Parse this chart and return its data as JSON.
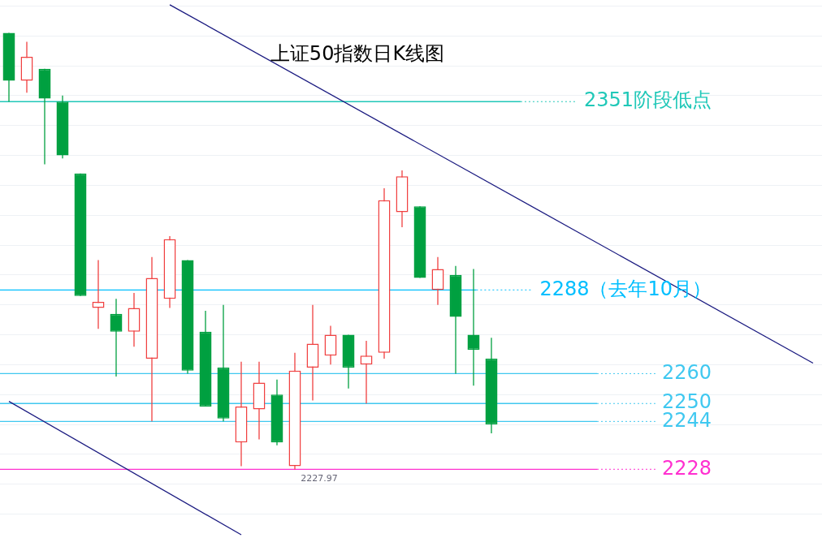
{
  "chart_data": {
    "type": "candlestick",
    "title": "上证50指数日K线图",
    "categories": [
      null,
      null,
      null,
      null,
      null,
      null,
      null,
      null,
      null,
      null,
      null,
      null,
      null,
      null,
      null,
      null,
      null,
      null,
      null,
      null,
      null,
      null,
      null,
      null,
      null,
      null,
      null,
      null,
      null,
      null,
      null,
      null,
      null,
      null,
      null,
      null,
      null,
      null,
      null,
      null,
      null,
      null,
      null,
      null,
      null,
      null
    ],
    "ohlc": [
      [
        2374,
        2374,
        2351,
        2358
      ],
      [
        2358,
        2371,
        2354,
        2366
      ],
      [
        2362,
        2362,
        2330,
        2352
      ],
      [
        2351,
        2353,
        2332,
        2333
      ],
      [
        2327,
        2327,
        2286,
        2286
      ],
      [
        2282,
        2298,
        2275,
        2284
      ],
      [
        2280,
        2285,
        2259,
        2274
      ],
      [
        2274,
        2287,
        2269,
        2282
      ],
      [
        2265,
        2299,
        2244,
        2292
      ],
      [
        2285,
        2306,
        2282,
        2305
      ],
      [
        2298,
        2298,
        2260,
        2261
      ],
      [
        2274,
        2281,
        2249,
        2249
      ],
      [
        2262,
        2283,
        2244,
        2245
      ],
      [
        2237,
        2264,
        2229,
        2249
      ],
      [
        2248,
        2264,
        2238,
        2257
      ],
      [
        2253,
        2258,
        2236,
        2237
      ],
      [
        2229,
        2267,
        2227.97,
        2261
      ],
      [
        2262,
        2283,
        2251,
        2270
      ],
      [
        2266,
        2276,
        2263,
        2273
      ],
      [
        2273,
        2273,
        2255,
        2262
      ],
      [
        2263,
        2271,
        2250,
        2266
      ],
      [
        2267,
        2322,
        2265,
        2318
      ],
      [
        2314,
        2328,
        2309,
        2326
      ],
      [
        2316,
        2316,
        2292,
        2292
      ],
      [
        2288,
        2299,
        2283,
        2295
      ],
      [
        2293,
        2296,
        2260,
        2279
      ],
      [
        2273,
        2295,
        2256,
        2268
      ],
      [
        2265,
        2272,
        2240,
        2243
      ],
      null,
      null,
      null,
      null,
      null,
      null,
      null,
      null,
      null,
      null,
      null,
      null,
      null,
      null,
      null,
      null,
      null,
      null
    ],
    "colors": [
      "#00a040",
      "#f04040",
      "#00a040",
      "#00a040",
      "#00a040",
      "#f04040",
      "#00a040",
      "#f04040",
      "#f04040",
      "#f04040",
      "#00a040",
      "#00a040",
      "#00a040",
      "#f04040",
      "#f04040",
      "#00a040",
      "#f04040",
      "#f04040",
      "#f04040",
      "#00a040",
      "#f04040",
      "#f04040",
      "#f04040",
      "#00a040",
      "#f04040",
      "#00a040",
      "#00a040",
      "#00a040",
      null,
      null,
      null,
      null,
      null,
      null,
      null,
      null,
      null,
      null,
      null,
      null,
      null,
      null,
      null,
      null,
      null,
      null
    ],
    "series": [
      {
        "type": "line",
        "color": "#1a1a80",
        "values": [
          null,
          null,
          null,
          null,
          null,
          null,
          null,
          null,
          null,
          2383.4,
          null,
          null,
          null,
          null,
          null,
          null,
          null,
          null,
          null,
          null,
          null,
          null,
          null,
          null,
          null,
          null,
          null,
          null,
          null,
          null,
          null,
          null,
          null,
          null,
          null,
          null,
          null,
          null,
          null,
          null,
          null,
          null,
          null,
          null,
          null,
          2263.5
        ]
      },
      {
        "type": "line",
        "color": "#1a1a80",
        "values": [
          2250.7,
          null,
          null,
          null,
          null,
          null,
          null,
          null,
          null,
          null,
          null,
          null,
          null,
          2206.1,
          null,
          null,
          null,
          null,
          null,
          null,
          null,
          null,
          null,
          null,
          null,
          null,
          null,
          null,
          null,
          null,
          null,
          null,
          null,
          null,
          null,
          null,
          null,
          null,
          null,
          null,
          null,
          null,
          null,
          null,
          null,
          null
        ]
      }
    ],
    "ylim": [
      2205,
      2385
    ],
    "yticks": [
      {
        "value": 2213,
        "label": null
      },
      {
        "value": 2223,
        "label": null
      },
      {
        "value": 2233,
        "label": null
      },
      {
        "value": 2243,
        "label": null
      },
      {
        "value": 2253,
        "label": null
      },
      {
        "value": 2263,
        "label": null
      },
      {
        "value": 2273,
        "label": null
      },
      {
        "value": 2283,
        "label": null
      },
      {
        "value": 2293,
        "label": null
      },
      {
        "value": 2303,
        "label": null
      },
      {
        "value": 2313,
        "label": null
      },
      {
        "value": 2323,
        "label": null
      },
      {
        "value": 2333,
        "label": null
      },
      {
        "value": 2343,
        "label": null
      },
      {
        "value": 2353,
        "label": null
      },
      {
        "value": 2363,
        "label": null
      },
      {
        "value": 2373,
        "label": null
      },
      {
        "value": 2383,
        "label": null
      }
    ],
    "grid": "y",
    "tick_labels": false,
    "ref_lines": [
      {
        "axis": "y",
        "value": 2351,
        "label": "2351阶段低点",
        "color": "#20c8b8"
      },
      {
        "axis": "y",
        "value": 2288,
        "label": "2288（去年10月）",
        "color": "#00bfff"
      },
      {
        "axis": "y",
        "value": 2260,
        "label": "2260",
        "color": "#40c8f0"
      },
      {
        "axis": "y",
        "value": 2250,
        "label": "2250",
        "color": "#40c8f0"
      },
      {
        "axis": "y",
        "value": 2244,
        "label": "2244",
        "color": "#40c8f0"
      },
      {
        "axis": "y",
        "value": 2228,
        "label": "2228",
        "color": "#ff30d0"
      }
    ],
    "annotations": [
      {
        "text": "2227.97",
        "y": 2227.97
      }
    ]
  }
}
